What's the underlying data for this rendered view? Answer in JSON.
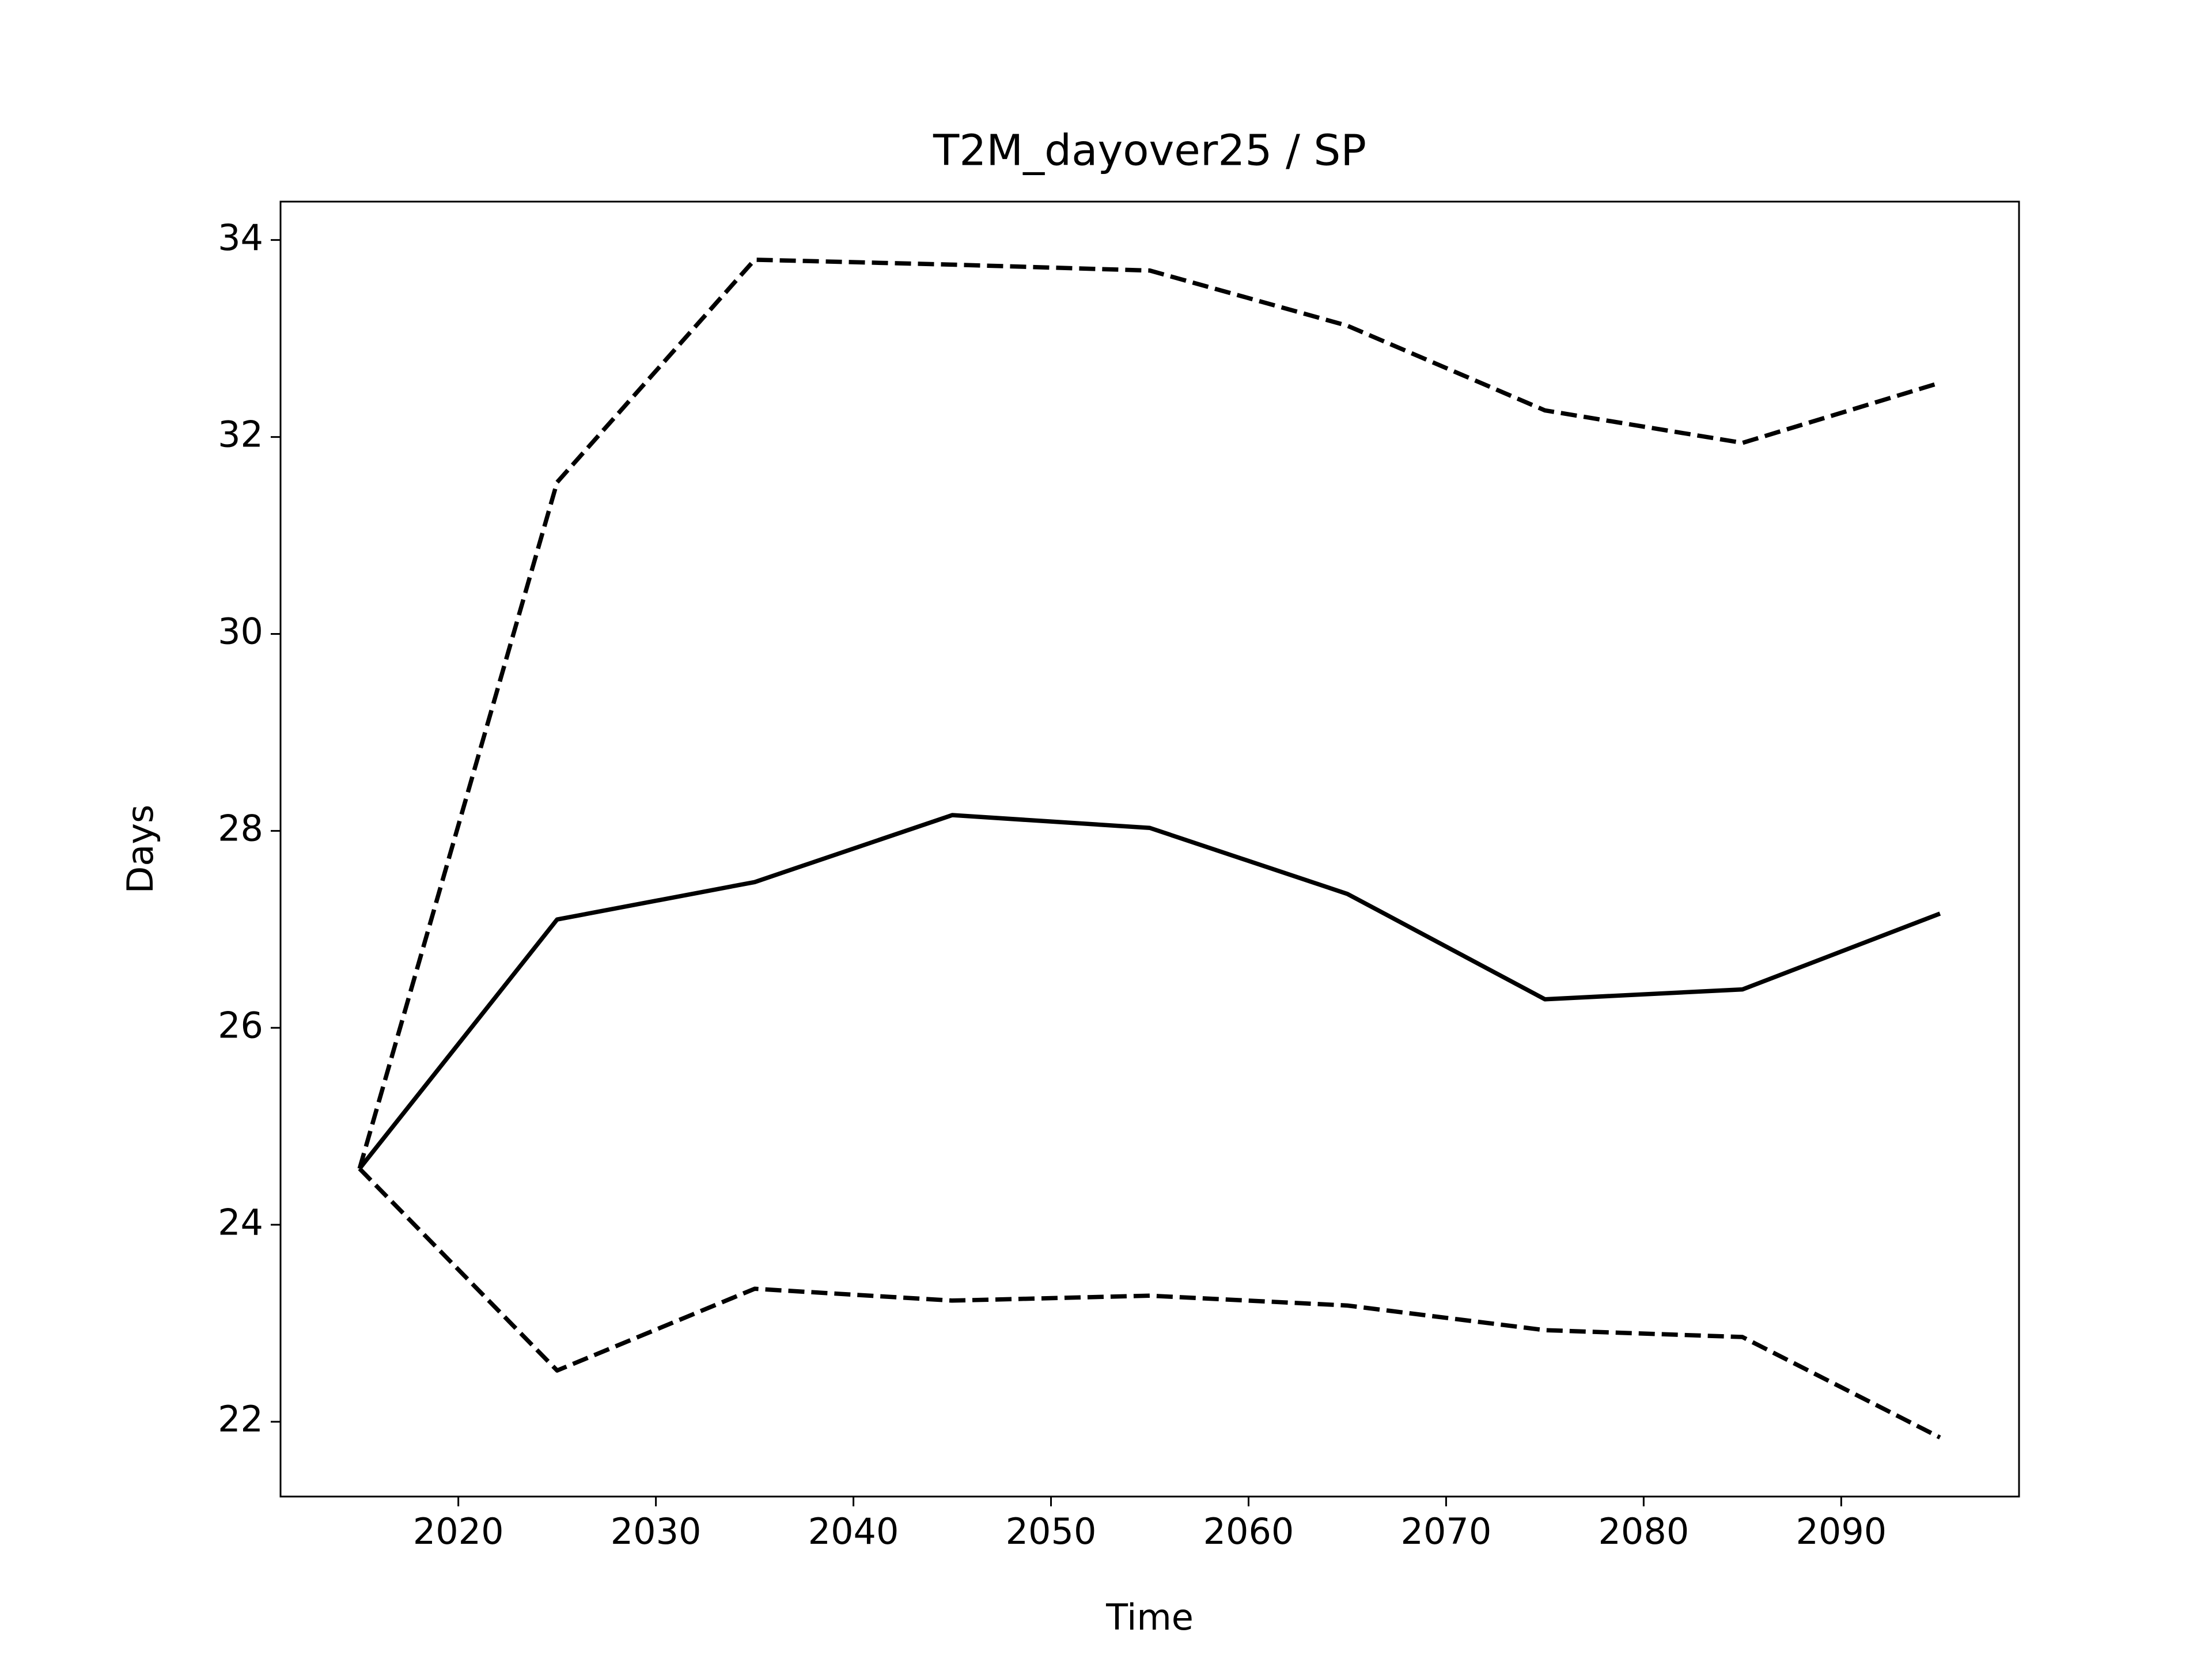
{
  "chart_data": {
    "type": "line",
    "title": "T2M_dayover25 / SP",
    "x_label": "Time",
    "y_label": "Days",
    "x": [
      2015,
      2025,
      2035,
      2045,
      2055,
      2065,
      2075,
      2085,
      2095
    ],
    "series": [
      {
        "color": "#000000",
        "linestyle": "solid",
        "values": [
          24.57,
          27.1,
          27.48,
          28.16,
          28.03,
          27.36,
          26.29,
          26.39,
          27.16
        ]
      },
      {
        "color": "#000000",
        "linestyle": "dashed",
        "values": [
          24.57,
          31.54,
          33.8,
          33.75,
          33.69,
          33.13,
          32.27,
          31.94,
          32.55
        ]
      },
      {
        "color": "#000000",
        "linestyle": "dashed",
        "values": [
          24.57,
          22.52,
          23.35,
          23.23,
          23.28,
          23.18,
          22.93,
          22.86,
          21.84
        ]
      }
    ],
    "xlim": [
      2011,
      2099
    ],
    "xticks": [
      2020,
      2030,
      2040,
      2050,
      2060,
      2070,
      2080,
      2090
    ],
    "ylim": [
      21.24,
      34.39
    ],
    "yticks": [
      22,
      24,
      26,
      28,
      30,
      32,
      34
    ],
    "grid": false
  }
}
